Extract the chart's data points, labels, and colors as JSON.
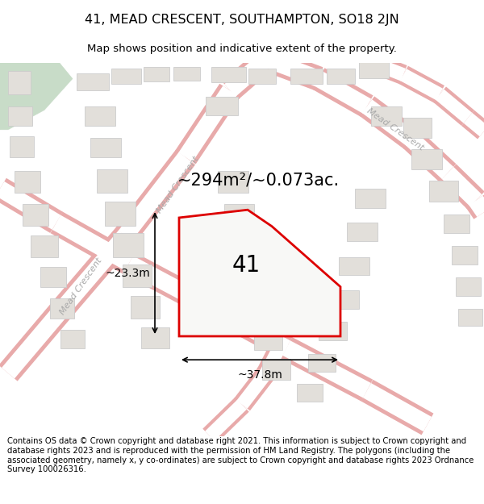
{
  "title": "41, MEAD CRESCENT, SOUTHAMPTON, SO18 2JN",
  "subtitle": "Map shows position and indicative extent of the property.",
  "footer": "Contains OS data © Crown copyright and database right 2021. This information is subject to Crown copyright and database rights 2023 and is reproduced with the permission of HM Land Registry. The polygons (including the associated geometry, namely x, y co-ordinates) are subject to Crown copyright and database rights 2023 Ordnance Survey 100026316.",
  "area_label": "~294m²/~0.073ac.",
  "width_label": "~37.8m",
  "height_label": "~23.3m",
  "plot_number": "41",
  "bg_color": "#f8f8f6",
  "map_bg": "#f8f8f6",
  "plot_color": "#dd0000",
  "road_fill": "#ffffff",
  "road_outline": "#e8aaaa",
  "building_color": "#e2dfda",
  "building_edge": "#cccccc",
  "green_color": "#c8dcc8",
  "figsize": [
    6.0,
    6.25
  ],
  "dpi": 100,
  "title_fontsize": 11.5,
  "subtitle_fontsize": 9.5,
  "footer_fontsize": 7.2,
  "area_fontsize": 15,
  "dim_fontsize": 10,
  "plot_label_fontsize": 20,
  "road_label_color": "#aaaaaa",
  "road_label_fontsize": 8
}
